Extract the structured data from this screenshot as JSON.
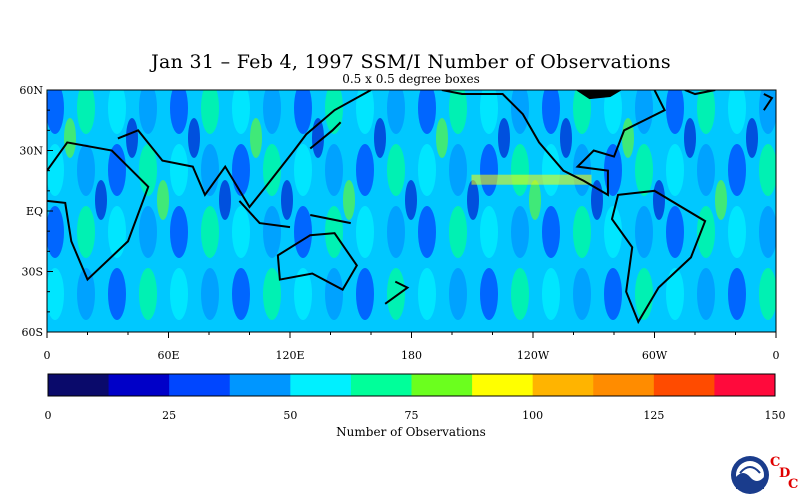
{
  "title": "Jan 31 – Feb 4, 1997 SSM/I Number of Observations",
  "subtitle": "0.5 x 0.5 degree boxes",
  "map": {
    "lat_labels": [
      "60N",
      "30N",
      "EQ",
      "30S",
      "60S"
    ],
    "lon_labels": [
      "0",
      "60E",
      "120E",
      "180",
      "120W",
      "60W",
      "0"
    ]
  },
  "colorbar": {
    "title": "Number of Observations",
    "tick_labels": [
      "0",
      "25",
      "50",
      "75",
      "100",
      "125",
      "150"
    ],
    "colors": [
      "#0a0a6b",
      "#0000c8",
      "#0046ff",
      "#0096ff",
      "#00f0ff",
      "#00ff9a",
      "#6bff1e",
      "#ffff00",
      "#ffb400",
      "#ff8c00",
      "#ff4b00",
      "#ff0a3c"
    ]
  },
  "chart_data": {
    "type": "heatmap",
    "title": "Jan 31 – Feb 4, 1997 SSM/I Number of Observations",
    "subtitle": "0.5 x 0.5 degree boxes",
    "xlabel": "",
    "ylabel": "",
    "x_range": [
      "0",
      "0"
    ],
    "y_range": [
      "60S",
      "60N"
    ],
    "colorbar_label": "Number of Observations",
    "colorbar_range": [
      0,
      150
    ],
    "colorbar_ticks": [
      0,
      25,
      50,
      75,
      100,
      125,
      150
    ]
  },
  "logos": {
    "noaa": "NOAA",
    "cdc_letters": [
      "C",
      "D",
      "C"
    ]
  }
}
